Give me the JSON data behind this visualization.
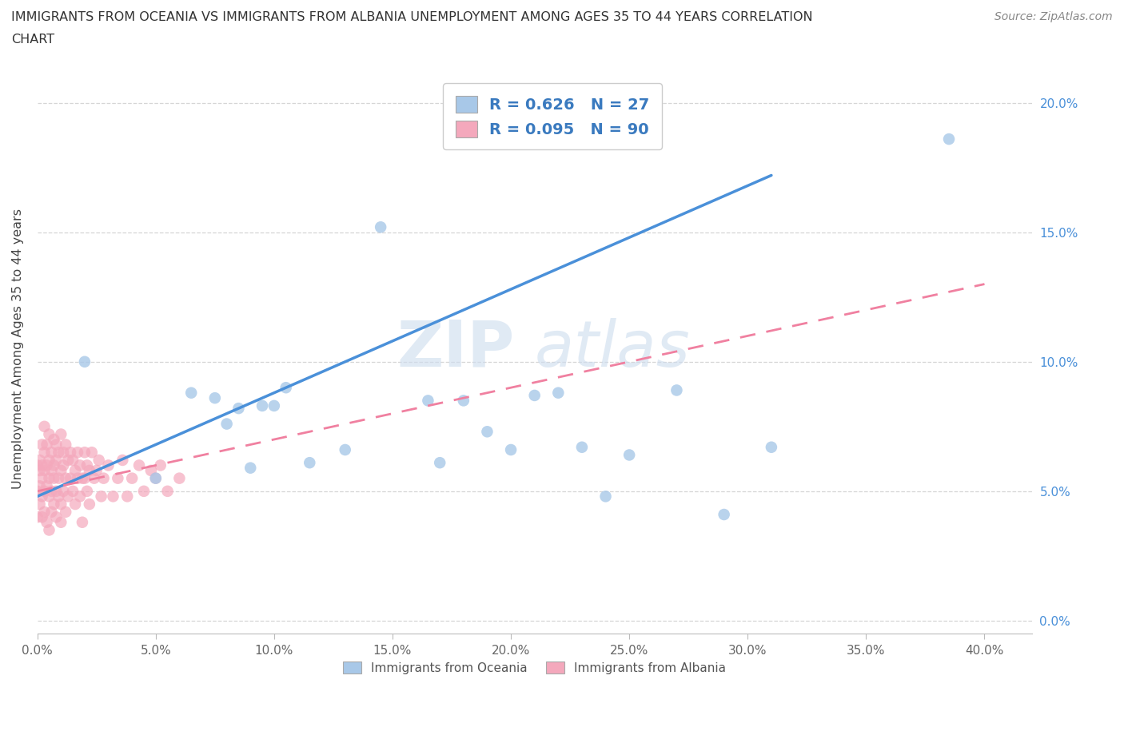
{
  "title_line1": "IMMIGRANTS FROM OCEANIA VS IMMIGRANTS FROM ALBANIA UNEMPLOYMENT AMONG AGES 35 TO 44 YEARS CORRELATION",
  "title_line2": "CHART",
  "source_text": "Source: ZipAtlas.com",
  "ylabel_label": "Unemployment Among Ages 35 to 44 years",
  "xlim": [
    0.0,
    0.42
  ],
  "ylim": [
    -0.005,
    0.215
  ],
  "watermark_line1": "ZIP",
  "watermark_line2": "atlas",
  "legend_oceania_R": "R = 0.626",
  "legend_oceania_N": "N = 27",
  "legend_albania_R": "R = 0.095",
  "legend_albania_N": "N = 90",
  "oceania_color": "#a8c8e8",
  "albania_color": "#f4a8bc",
  "trend_oceania_color": "#4a90d9",
  "trend_albania_color": "#f080a0",
  "oceania_scatter_x": [
    0.02,
    0.05,
    0.065,
    0.075,
    0.08,
    0.085,
    0.09,
    0.095,
    0.1,
    0.105,
    0.115,
    0.13,
    0.145,
    0.165,
    0.17,
    0.18,
    0.19,
    0.2,
    0.21,
    0.22,
    0.23,
    0.24,
    0.25,
    0.27,
    0.29,
    0.31,
    0.385
  ],
  "oceania_scatter_y": [
    0.1,
    0.055,
    0.088,
    0.086,
    0.076,
    0.082,
    0.059,
    0.083,
    0.083,
    0.09,
    0.061,
    0.066,
    0.152,
    0.085,
    0.061,
    0.085,
    0.073,
    0.066,
    0.087,
    0.088,
    0.067,
    0.048,
    0.064,
    0.089,
    0.041,
    0.067,
    0.186
  ],
  "albania_scatter_x": [
    0.0,
    0.0,
    0.0,
    0.001,
    0.001,
    0.001,
    0.001,
    0.002,
    0.002,
    0.002,
    0.002,
    0.002,
    0.003,
    0.003,
    0.003,
    0.003,
    0.003,
    0.004,
    0.004,
    0.004,
    0.004,
    0.005,
    0.005,
    0.005,
    0.005,
    0.005,
    0.006,
    0.006,
    0.006,
    0.006,
    0.007,
    0.007,
    0.007,
    0.007,
    0.008,
    0.008,
    0.008,
    0.008,
    0.009,
    0.009,
    0.009,
    0.01,
    0.01,
    0.01,
    0.01,
    0.011,
    0.011,
    0.011,
    0.012,
    0.012,
    0.012,
    0.013,
    0.013,
    0.014,
    0.014,
    0.015,
    0.015,
    0.016,
    0.016,
    0.017,
    0.017,
    0.018,
    0.018,
    0.019,
    0.019,
    0.02,
    0.02,
    0.021,
    0.021,
    0.022,
    0.022,
    0.023,
    0.024,
    0.025,
    0.026,
    0.027,
    0.028,
    0.03,
    0.032,
    0.034,
    0.036,
    0.038,
    0.04,
    0.043,
    0.045,
    0.048,
    0.05,
    0.052,
    0.055,
    0.06
  ],
  "albania_scatter_y": [
    0.05,
    0.06,
    0.04,
    0.052,
    0.062,
    0.045,
    0.058,
    0.06,
    0.048,
    0.055,
    0.068,
    0.04,
    0.058,
    0.05,
    0.065,
    0.042,
    0.075,
    0.06,
    0.052,
    0.068,
    0.038,
    0.055,
    0.062,
    0.048,
    0.072,
    0.035,
    0.058,
    0.065,
    0.05,
    0.042,
    0.06,
    0.055,
    0.07,
    0.045,
    0.062,
    0.05,
    0.068,
    0.04,
    0.055,
    0.065,
    0.048,
    0.072,
    0.058,
    0.045,
    0.038,
    0.06,
    0.065,
    0.05,
    0.055,
    0.068,
    0.042,
    0.062,
    0.048,
    0.055,
    0.065,
    0.05,
    0.062,
    0.058,
    0.045,
    0.055,
    0.065,
    0.06,
    0.048,
    0.055,
    0.038,
    0.065,
    0.055,
    0.06,
    0.05,
    0.058,
    0.045,
    0.065,
    0.055,
    0.058,
    0.062,
    0.048,
    0.055,
    0.06,
    0.048,
    0.055,
    0.062,
    0.048,
    0.055,
    0.06,
    0.05,
    0.058,
    0.055,
    0.06,
    0.05,
    0.055
  ],
  "oceania_trend_x0": 0.0,
  "oceania_trend_y0": 0.048,
  "oceania_trend_x1": 0.31,
  "oceania_trend_y1": 0.172,
  "albania_trend_x0": 0.0,
  "albania_trend_y0": 0.05,
  "albania_trend_x1": 0.4,
  "albania_trend_y1": 0.13,
  "background_color": "#ffffff",
  "grid_color": "#cccccc",
  "right_axis_color": "#4a90d9",
  "legend_text_color": "#3a7abf"
}
